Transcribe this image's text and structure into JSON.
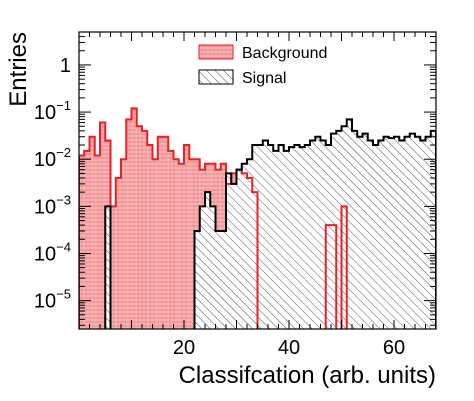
{
  "chart_data": {
    "type": "histogram",
    "title": "",
    "xlabel": "Classifcation (arb. units)",
    "ylabel": "Entries",
    "xlim": [
      0,
      68
    ],
    "ylim": [
      2.5e-06,
      5
    ],
    "y_scale": "log",
    "x_ticks": [
      20,
      40,
      60
    ],
    "y_tick_labels": [
      {
        "value": 1,
        "text": "1"
      },
      {
        "value": 0.1,
        "base": "10",
        "exp": "−1"
      },
      {
        "value": 0.01,
        "base": "10",
        "exp": "−2"
      },
      {
        "value": 0.001,
        "base": "10",
        "exp": "−3"
      },
      {
        "value": 0.0001,
        "base": "10",
        "exp": "−4"
      },
      {
        "value": 1e-05,
        "base": "10",
        "exp": "−5"
      }
    ],
    "grid": false,
    "legend_position": "top-center",
    "bin_width": 1,
    "series": [
      {
        "name": "Background",
        "color": "#e8202a",
        "fill": "#f4a8a8",
        "style": "hatched-fill",
        "bins": [
          [
            0,
            0.012
          ],
          [
            1,
            0.015
          ],
          [
            2,
            0.03
          ],
          [
            3,
            0.012
          ],
          [
            4,
            0.06
          ],
          [
            5,
            0.025
          ],
          [
            6,
            0.001
          ],
          [
            7,
            0.004
          ],
          [
            8,
            0.01
          ],
          [
            9,
            0.07
          ],
          [
            10,
            0.12
          ],
          [
            11,
            0.05
          ],
          [
            12,
            0.04
          ],
          [
            13,
            0.02
          ],
          [
            14,
            0.01
          ],
          [
            15,
            0.03
          ],
          [
            16,
            0.03
          ],
          [
            17,
            0.015
          ],
          [
            18,
            0.01
          ],
          [
            19,
            0.008
          ],
          [
            20,
            0.02
          ],
          [
            21,
            0.01
          ],
          [
            22,
            0.01
          ],
          [
            23,
            0.006
          ],
          [
            24,
            0.008
          ],
          [
            25,
            0.008
          ],
          [
            26,
            0.006
          ],
          [
            27,
            0.008
          ],
          [
            28,
            0.003
          ],
          [
            29,
            0.005
          ],
          [
            30,
            0.006
          ],
          [
            31,
            0.005
          ],
          [
            32,
            0.004
          ],
          [
            33,
            0.002
          ],
          [
            47,
            0.0004
          ],
          [
            48,
            0.0004
          ],
          [
            50,
            0.001
          ]
        ]
      },
      {
        "name": "Signal",
        "color": "#000000",
        "fill": "#ffffff",
        "style": "diagonal-hatch",
        "bins": [
          [
            5,
            0.001
          ],
          [
            22,
            0.0003
          ],
          [
            23,
            0.001
          ],
          [
            24,
            0.002
          ],
          [
            25,
            0.001
          ],
          [
            26,
            0.0003
          ],
          [
            27,
            0.0003
          ],
          [
            28,
            0.005
          ],
          [
            29,
            0.003
          ],
          [
            30,
            0.006
          ],
          [
            31,
            0.008
          ],
          [
            32,
            0.01
          ],
          [
            33,
            0.02
          ],
          [
            34,
            0.02
          ],
          [
            35,
            0.025
          ],
          [
            36,
            0.02
          ],
          [
            37,
            0.015
          ],
          [
            38,
            0.02
          ],
          [
            39,
            0.015
          ],
          [
            40,
            0.018
          ],
          [
            41,
            0.02
          ],
          [
            42,
            0.018
          ],
          [
            43,
            0.02
          ],
          [
            44,
            0.025
          ],
          [
            45,
            0.03
          ],
          [
            46,
            0.025
          ],
          [
            47,
            0.02
          ],
          [
            48,
            0.035
          ],
          [
            49,
            0.04
          ],
          [
            50,
            0.05
          ],
          [
            51,
            0.07
          ],
          [
            52,
            0.04
          ],
          [
            53,
            0.03
          ],
          [
            54,
            0.035
          ],
          [
            55,
            0.025
          ],
          [
            56,
            0.02
          ],
          [
            57,
            0.025
          ],
          [
            58,
            0.03
          ],
          [
            59,
            0.028
          ],
          [
            60,
            0.03
          ],
          [
            61,
            0.025
          ],
          [
            62,
            0.03
          ],
          [
            63,
            0.035
          ],
          [
            64,
            0.03
          ],
          [
            65,
            0.025
          ],
          [
            66,
            0.03
          ],
          [
            67,
            0.04
          ]
        ]
      }
    ]
  }
}
